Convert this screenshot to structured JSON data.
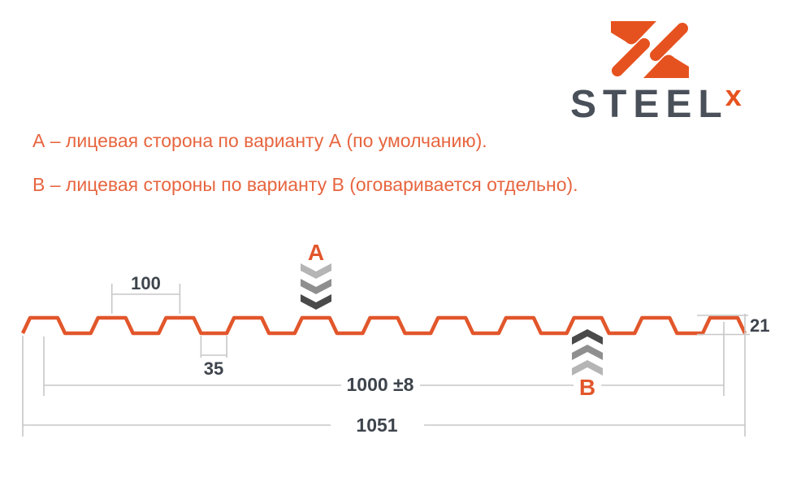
{
  "logo": {
    "wordmark": "STEEL",
    "wordmark_sup": "x"
  },
  "notes": {
    "line_a": "А – лицевая сторона по варианту А (по умолчанию).",
    "line_b": "В – лицевая стороны по варианту В (оговаривается отдельно)."
  },
  "diagram": {
    "marker_a": "А",
    "marker_b": "В",
    "dimensions": {
      "rib_pitch": "100",
      "rib_bottom_width": "35",
      "cover_width": "1000 ±8",
      "overall_width": "1051",
      "profile_height": "21"
    }
  },
  "colors": {
    "brand_orange": "#e6521f",
    "drawing_orange": "#e2562b",
    "note_orange": "#e7653f",
    "charcoal": "#3e444c",
    "steel_gray": "#4a5059",
    "dim_gray": "#c7c7c7",
    "chevron_light": "#b5b5b5",
    "chevron_mid": "#8f8f8f",
    "chevron_dark": "#4a4a4a",
    "page_bg": "#ffffff"
  }
}
